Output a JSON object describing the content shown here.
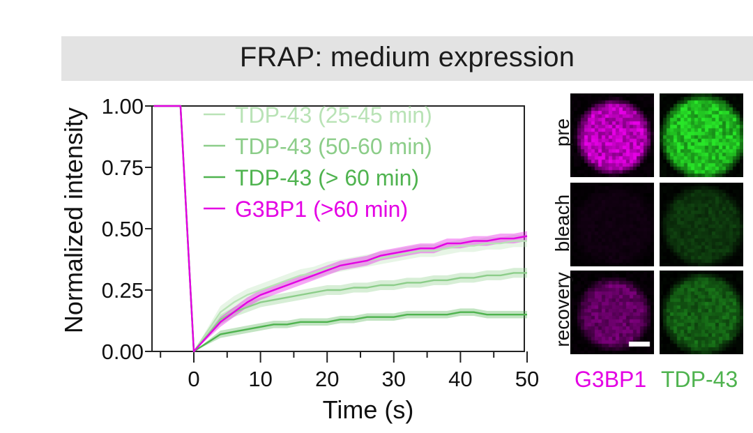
{
  "banner": {
    "title": "FRAP: medium expression"
  },
  "colors": {
    "g3bp1": "#e400e4",
    "tdp_25_45": "#b9e3b6",
    "tdp_50_60": "#8ccd89",
    "tdp_gt60": "#4fb34f",
    "banner_bg": "#e3e3e3"
  },
  "chart_data": {
    "type": "line",
    "title": "",
    "xlabel": "Time (s)",
    "ylabel": "Normalized intensity",
    "xlim": [
      -7,
      50
    ],
    "ylim": [
      0,
      1.0
    ],
    "x_ticks": [
      0,
      10,
      20,
      30,
      40,
      50
    ],
    "y_ticks": [
      "0.00",
      "0.25",
      "0.50",
      "0.75",
      "1.00"
    ],
    "grid": false,
    "legend_position": "top-left",
    "series": [
      {
        "name": "TDP-43 (25-45 min)",
        "color": "#b9e3b6",
        "x": [
          -6,
          -2,
          0,
          4,
          6,
          8,
          10,
          12,
          14,
          16,
          18,
          20,
          22,
          24,
          26,
          28,
          30,
          32,
          34,
          36,
          38,
          40,
          42,
          44,
          46,
          48,
          50
        ],
        "y": [
          1.0,
          1.0,
          0.0,
          0.16,
          0.2,
          0.23,
          0.25,
          0.27,
          0.29,
          0.31,
          0.32,
          0.34,
          0.35,
          0.36,
          0.37,
          0.38,
          0.39,
          0.4,
          0.41,
          0.41,
          0.42,
          0.43,
          0.43,
          0.44,
          0.44,
          0.45,
          0.45
        ]
      },
      {
        "name": "TDP-43 (50-60 min)",
        "color": "#8ccd89",
        "x": [
          -6,
          -2,
          0,
          4,
          6,
          8,
          10,
          12,
          14,
          16,
          18,
          20,
          22,
          24,
          26,
          28,
          30,
          32,
          34,
          36,
          38,
          40,
          42,
          44,
          46,
          48,
          50
        ],
        "y": [
          1.0,
          1.0,
          0.0,
          0.13,
          0.16,
          0.18,
          0.2,
          0.21,
          0.22,
          0.23,
          0.24,
          0.25,
          0.25,
          0.26,
          0.26,
          0.27,
          0.27,
          0.28,
          0.28,
          0.29,
          0.29,
          0.3,
          0.3,
          0.31,
          0.31,
          0.32,
          0.32
        ]
      },
      {
        "name": "TDP-43 (> 60 min)",
        "color": "#4fb34f",
        "x": [
          -6,
          -2,
          0,
          4,
          6,
          8,
          10,
          12,
          14,
          16,
          18,
          20,
          22,
          24,
          26,
          28,
          30,
          32,
          34,
          36,
          38,
          40,
          42,
          44,
          46,
          48,
          50
        ],
        "y": [
          1.0,
          1.0,
          0.0,
          0.07,
          0.08,
          0.09,
          0.1,
          0.11,
          0.11,
          0.12,
          0.12,
          0.12,
          0.13,
          0.13,
          0.14,
          0.14,
          0.14,
          0.15,
          0.15,
          0.15,
          0.15,
          0.16,
          0.16,
          0.15,
          0.15,
          0.15,
          0.15
        ]
      },
      {
        "name": "G3BP1 (>60 min)",
        "color": "#e400e4",
        "x": [
          -6,
          -2,
          0,
          4,
          6,
          8,
          10,
          12,
          14,
          16,
          18,
          20,
          22,
          24,
          26,
          28,
          30,
          32,
          34,
          36,
          38,
          40,
          42,
          44,
          46,
          48,
          50
        ],
        "y": [
          1.0,
          1.0,
          0.0,
          0.12,
          0.16,
          0.2,
          0.23,
          0.25,
          0.27,
          0.29,
          0.31,
          0.33,
          0.35,
          0.36,
          0.37,
          0.39,
          0.4,
          0.41,
          0.42,
          0.42,
          0.44,
          0.44,
          0.45,
          0.45,
          0.46,
          0.46,
          0.47
        ]
      }
    ]
  },
  "images": {
    "row_labels": [
      "pre",
      "bleach",
      "recovery"
    ],
    "channel_labels": [
      "G3BP1",
      "TDP-43"
    ]
  }
}
